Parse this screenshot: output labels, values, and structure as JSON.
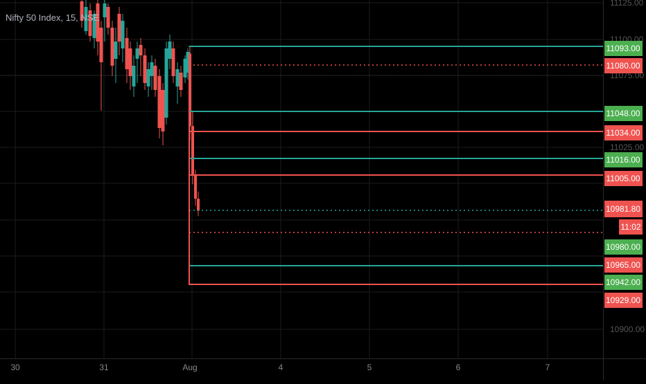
{
  "chart_data": {
    "type": "candlestick",
    "title": "Nifty 50 Index, 15, NSE",
    "x_tick_labels": [
      "30",
      "31",
      "Aug",
      "4",
      "5",
      "6",
      "7"
    ],
    "y_tick_labels": [
      "11125.00",
      "11100.00",
      "11075.00",
      "11025.00",
      "10900.00"
    ],
    "ylim": [
      10885,
      11130
    ],
    "grid": true,
    "colors": {
      "up": "#26a69a",
      "down": "#ef5350",
      "background": "#000000",
      "grid": "#1f1f1f",
      "text": "#b2b5be"
    },
    "current_price": {
      "value": "10981.80",
      "countdown": "11:02",
      "color": "#ef5350"
    },
    "candles_recent": [
      {
        "o": 11090,
        "h": 11095,
        "l": 11030,
        "c": 11040
      },
      {
        "o": 11040,
        "h": 11050,
        "l": 11000,
        "c": 11006
      },
      {
        "o": 11006,
        "h": 11010,
        "l": 10985,
        "c": 10990
      },
      {
        "o": 10990,
        "h": 10995,
        "l": 10978,
        "c": 10981.8
      }
    ],
    "levels": [
      {
        "value": 11093.0,
        "label": "11093.00",
        "color": "green",
        "style": "solid"
      },
      {
        "value": 11080.0,
        "label": "11080.00",
        "color": "red",
        "style": "dotted"
      },
      {
        "value": 11048.0,
        "label": "11048.00",
        "color": "green",
        "style": "solid"
      },
      {
        "value": 11034.0,
        "label": "11034.00",
        "color": "red",
        "style": "solid"
      },
      {
        "value": 11016.0,
        "label": "11016.00",
        "color": "green",
        "style": "solid"
      },
      {
        "value": 11005.0,
        "label": "11005.00",
        "color": "red",
        "style": "solid"
      },
      {
        "value": 10980.0,
        "label": "10980.00",
        "color": "green",
        "style": "dotted"
      },
      {
        "value": 10965.0,
        "label": "10965.00",
        "color": "red",
        "style": "dotted"
      },
      {
        "value": 10942.0,
        "label": "10942.00",
        "color": "green",
        "style": "solid"
      },
      {
        "value": 10929.0,
        "label": "10929.00",
        "color": "red",
        "style": "solid"
      }
    ]
  }
}
